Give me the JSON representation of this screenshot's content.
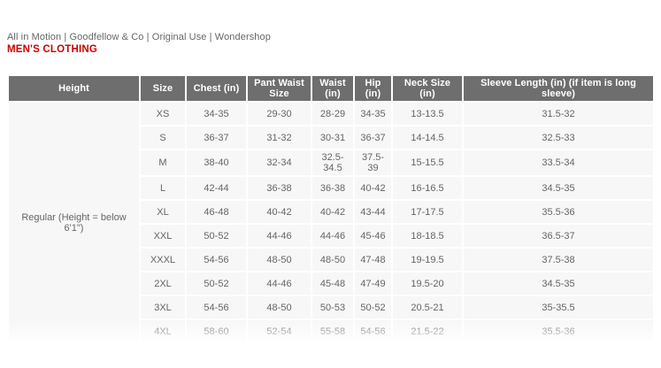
{
  "page": {
    "brands_line": "All in Motion | Goodfellow & Co | Original Use | Wondershop",
    "title": "MEN'S CLOTHING"
  },
  "colors": {
    "title_red": "#cc0000",
    "header_bg": "#6e6e6e",
    "header_text": "#ffffff",
    "row_bg": "#f7f7f7",
    "cell_text": "#656565",
    "brands_text": "#666666"
  },
  "size_chart": {
    "columns": [
      "Height",
      "Size",
      "Chest (in)",
      "Pant Waist Size",
      "Waist (in)",
      "Hip (in)",
      "Neck Size (in)",
      "Sleeve Length (in) (if item is long sleeve)"
    ],
    "height_group_label": "Regular (Height = below 6'1\")",
    "rows": [
      {
        "size": "XS",
        "chest": "34-35",
        "pant_waist": "29-30",
        "waist": "28-29",
        "hip": "34-35",
        "neck": "13-13.5",
        "sleeve": "31.5-32"
      },
      {
        "size": "S",
        "chest": "36-37",
        "pant_waist": "31-32",
        "waist": "30-31",
        "hip": "36-37",
        "neck": "14-14.5",
        "sleeve": "32.5-33"
      },
      {
        "size": "M",
        "chest": "38-40",
        "pant_waist": "32-34",
        "waist": "32.5-34.5",
        "hip": "37.5-39",
        "neck": "15-15.5",
        "sleeve": "33.5-34"
      },
      {
        "size": "L",
        "chest": "42-44",
        "pant_waist": "36-38",
        "waist": "36-38",
        "hip": "40-42",
        "neck": "16-16.5",
        "sleeve": "34.5-35"
      },
      {
        "size": "XL",
        "chest": "46-48",
        "pant_waist": "40-42",
        "waist": "40-42",
        "hip": "43-44",
        "neck": "17-17.5",
        "sleeve": "35.5-36"
      },
      {
        "size": "XXL",
        "chest": "50-52",
        "pant_waist": "44-46",
        "waist": "44-46",
        "hip": "45-46",
        "neck": "18-18.5",
        "sleeve": "36.5-37"
      },
      {
        "size": "XXXL",
        "chest": "54-56",
        "pant_waist": "48-50",
        "waist": "48-50",
        "hip": "47-48",
        "neck": "19-19.5",
        "sleeve": "37.5-38"
      },
      {
        "size": "2XL",
        "chest": "50-52",
        "pant_waist": "44-46",
        "waist": "45-48",
        "hip": "47-49",
        "neck": "19.5-20",
        "sleeve": "34.5-35"
      },
      {
        "size": "3XL",
        "chest": "54-56",
        "pant_waist": "48-50",
        "waist": "50-53",
        "hip": "50-52",
        "neck": "20.5-21",
        "sleeve": "35-35.5"
      },
      {
        "size": "4XL",
        "chest": "58-60",
        "pant_waist": "52-54",
        "waist": "55-58",
        "hip": "54-56",
        "neck": "21.5-22",
        "sleeve": "35.5-36"
      }
    ]
  }
}
